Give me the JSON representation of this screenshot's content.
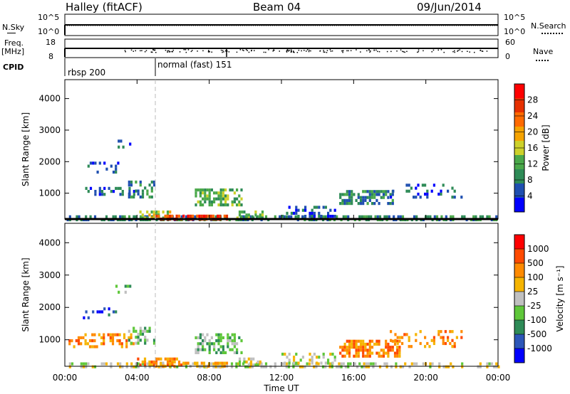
{
  "header": {
    "station": "Halley (fitACF)",
    "beam": "Beam 04",
    "date": "09/Jun/2014"
  },
  "top_panels": {
    "nsky_label": "N.Sky",
    "nsky_ticks": [
      "10^5",
      "10^0"
    ],
    "nsearch_label": "N.Search",
    "nsearch_ticks": [
      "10^5",
      "10^0"
    ],
    "freq_label": "Freq.",
    "freq_unit": "[MHz]",
    "freq_ticks": [
      "18",
      "8"
    ],
    "nave_label": "Nave",
    "nave_ticks": [
      "60",
      "0"
    ],
    "cpid_label": "CPID",
    "cpid_segments": [
      "rbsp 200",
      "normal (fast) 151"
    ]
  },
  "colors": {
    "power_scale": [
      "#0000ff",
      "#1f4fb0",
      "#2e8b57",
      "#4aa84a",
      "#cdd12a",
      "#f5a300",
      "#ff6a00",
      "#e63000",
      "#ff0000"
    ],
    "velocity_scale": [
      "#0000ff",
      "#2c56b8",
      "#2e8b57",
      "#5fc73a",
      "#c0c0c0",
      "#f5b400",
      "#ff8a00",
      "#ff4a00",
      "#ff0000"
    ]
  },
  "chart_data": [
    {
      "type": "heatmap",
      "name": "power",
      "ylabel": "Slant Range [km]",
      "yticks": [
        1000,
        2000,
        3000,
        4000
      ],
      "ylim": [
        180,
        4600
      ],
      "xlim": [
        0,
        24
      ],
      "colorbar_label": "Power [dB]",
      "colorbar_ticks": [
        "28",
        "24",
        "20",
        "16",
        "12",
        "8",
        "4"
      ],
      "mode_change_hour": 5.1,
      "blobs": [
        {
          "x": [
            0.1,
            24
          ],
          "y": [
            200,
            300
          ],
          "level": 2,
          "density": 0.5
        },
        {
          "x": [
            1,
            3.8
          ],
          "y": [
            1000,
            1200
          ],
          "level": 1,
          "density": 0.35
        },
        {
          "x": [
            3.5,
            5
          ],
          "y": [
            900,
            1400
          ],
          "level": 2,
          "density": 0.45
        },
        {
          "x": [
            4,
            6
          ],
          "y": [
            250,
            450
          ],
          "level": 4,
          "density": 0.55
        },
        {
          "x": [
            5,
            9
          ],
          "y": [
            190,
            320
          ],
          "level": 7,
          "density": 0.6
        },
        {
          "x": [
            7.2,
            9.8
          ],
          "y": [
            650,
            1150
          ],
          "level": 3,
          "density": 0.55
        },
        {
          "x": [
            9.5,
            11
          ],
          "y": [
            250,
            450
          ],
          "level": 3,
          "density": 0.45
        },
        {
          "x": [
            12,
            15
          ],
          "y": [
            250,
            600
          ],
          "level": 1,
          "density": 0.35
        },
        {
          "x": [
            15.2,
            18.2
          ],
          "y": [
            700,
            1100
          ],
          "level": 2,
          "density": 0.6
        },
        {
          "x": [
            18,
            22
          ],
          "y": [
            900,
            1300
          ],
          "level": 1,
          "density": 0.2
        },
        {
          "x": [
            1,
            3
          ],
          "y": [
            1700,
            2000
          ],
          "level": 1,
          "density": 0.25
        },
        {
          "x": [
            2.8,
            3.6
          ],
          "y": [
            2500,
            2700
          ],
          "level": 1,
          "density": 0.3
        }
      ]
    },
    {
      "type": "heatmap",
      "name": "velocity",
      "ylabel": "Slant Range [km]",
      "yticks": [
        1000,
        2000,
        3000,
        4000
      ],
      "ylim": [
        180,
        4600
      ],
      "xlim": [
        0,
        24
      ],
      "xticks": [
        "00:00",
        "04:00",
        "08:00",
        "12:00",
        "16:00",
        "20:00",
        "00:00"
      ],
      "xlabel": "Time UT",
      "colorbar_label": "Velocity [m s⁻¹]",
      "colorbar_ticks": [
        "1000",
        "500",
        "100",
        "25",
        "-25",
        "-100",
        "-500",
        "-1000"
      ],
      "mode_change_hour": 5.1,
      "blobs": [
        {
          "x": [
            0.1,
            24
          ],
          "y": [
            200,
            300
          ],
          "level": 4,
          "density": 0.45
        },
        {
          "x": [
            0.2,
            3.8
          ],
          "y": [
            800,
            1200
          ],
          "level": 6,
          "density": 0.4
        },
        {
          "x": [
            3.5,
            5
          ],
          "y": [
            900,
            1400
          ],
          "level": 3,
          "density": 0.45
        },
        {
          "x": [
            4,
            6.5
          ],
          "y": [
            250,
            450
          ],
          "level": 6,
          "density": 0.55
        },
        {
          "x": [
            5,
            9
          ],
          "y": [
            190,
            320
          ],
          "level": 5,
          "density": 0.5
        },
        {
          "x": [
            7.2,
            9.8
          ],
          "y": [
            600,
            1200
          ],
          "level": 3,
          "density": 0.55
        },
        {
          "x": [
            9.5,
            11
          ],
          "y": [
            250,
            450
          ],
          "level": 4,
          "density": 0.45
        },
        {
          "x": [
            12,
            15
          ],
          "y": [
            250,
            600
          ],
          "level": 4,
          "density": 0.35
        },
        {
          "x": [
            15.2,
            18.5
          ],
          "y": [
            500,
            1000
          ],
          "level": 6,
          "density": 0.6
        },
        {
          "x": [
            18,
            22
          ],
          "y": [
            800,
            1300
          ],
          "level": 6,
          "density": 0.25
        },
        {
          "x": [
            1,
            3
          ],
          "y": [
            1700,
            2000
          ],
          "level": 1,
          "density": 0.2
        },
        {
          "x": [
            2.8,
            3.6
          ],
          "y": [
            2500,
            2700
          ],
          "level": 3,
          "density": 0.3
        }
      ]
    }
  ]
}
